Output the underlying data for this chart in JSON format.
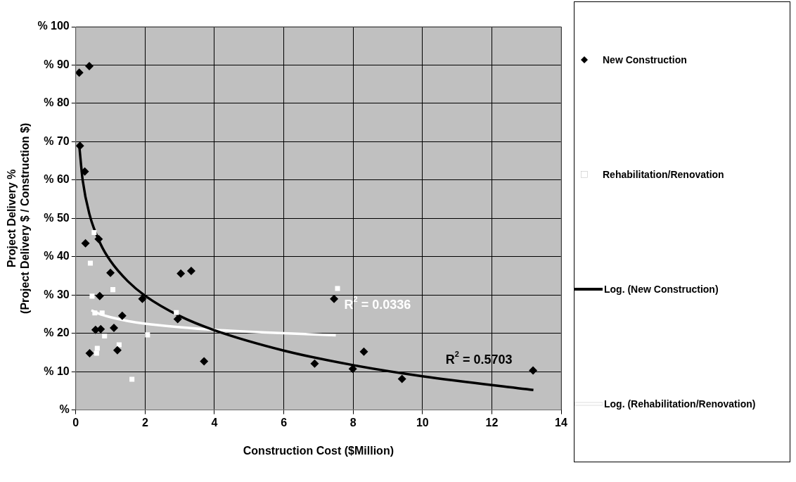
{
  "chart_data": {
    "type": "scatter",
    "xlabel": "Construction Cost ($Million)",
    "ylabel": "Project Delivery %\n(Project Delivery $ / Construction $)",
    "xlim": [
      0,
      14
    ],
    "xticks": [
      0,
      2,
      4,
      6,
      8,
      10,
      12,
      14
    ],
    "ylim": [
      0,
      100
    ],
    "yticks": [
      {
        "value": 0,
        "label": "%"
      },
      {
        "value": 10,
        "label": "% 10"
      },
      {
        "value": 20,
        "label": "% 20"
      },
      {
        "value": 30,
        "label": "% 30"
      },
      {
        "value": 40,
        "label": "% 40"
      },
      {
        "value": 50,
        "label": "% 50"
      },
      {
        "value": 60,
        "label": "% 60"
      },
      {
        "value": 70,
        "label": "% 70"
      },
      {
        "value": 80,
        "label": "% 80"
      },
      {
        "value": 90,
        "label": "% 90"
      },
      {
        "value": 100,
        "label": "% 100"
      }
    ],
    "grid": true,
    "legend": "right",
    "series": [
      {
        "name": "New Construction",
        "marker": "diamond",
        "color": "#000000",
        "x": [
          0.1,
          0.39,
          0.12,
          0.26,
          0.28,
          0.66,
          1.0,
          0.69,
          1.92,
          3.03,
          3.33,
          1.34,
          2.94,
          0.57,
          0.72,
          1.1,
          0.4,
          1.2,
          3.7,
          7.45,
          8.31,
          6.89,
          7.99,
          9.41,
          13.19
        ],
        "values": [
          88.0,
          89.7,
          68.9,
          62.2,
          43.5,
          44.6,
          35.8,
          29.7,
          29.0,
          35.6,
          36.3,
          24.6,
          23.7,
          20.9,
          21.1,
          21.4,
          14.8,
          15.6,
          12.7,
          29.0,
          15.2,
          12.1,
          10.7,
          8.1,
          10.3
        ]
      },
      {
        "name": "Rehabilitation/Renovation",
        "marker": "square",
        "color": "#ffffff",
        "x": [
          0.53,
          0.42,
          1.07,
          0.47,
          0.55,
          0.76,
          2.9,
          2.07,
          0.83,
          0.6,
          0.62,
          1.25,
          1.62,
          7.55
        ],
        "values": [
          46.3,
          38.3,
          31.4,
          29.7,
          25.3,
          25.3,
          25.4,
          19.6,
          19.3,
          14.8,
          16.1,
          17.0,
          8.0,
          31.7
        ]
      },
      {
        "name": "Log. (New Construction)",
        "type": "line",
        "marker": "none",
        "color": "#000000",
        "x": [
          0.1,
          0.2,
          0.4,
          0.7,
          1,
          1.5,
          2,
          3,
          4,
          6,
          8,
          10,
          13.2
        ],
        "values": [
          69.0,
          59.9,
          50.9,
          43.6,
          38.9,
          33.6,
          29.8,
          24.5,
          20.8,
          15.5,
          11.7,
          8.8,
          5.2
        ]
      },
      {
        "name": "Log. (Rehabilitation/Renovation)",
        "type": "line",
        "marker": "none",
        "color": "#ffffff",
        "x": [
          0.45,
          0.7,
          1,
          1.5,
          2,
          3,
          4,
          5.5,
          7.5
        ],
        "values": [
          26.0,
          25.0,
          24.2,
          23.2,
          22.5,
          21.6,
          20.9,
          20.2,
          19.5
        ]
      }
    ],
    "annotations": [
      "R$^{2}$ = 0.5703",
      "R$^{2}$ = 0.0336"
    ]
  }
}
